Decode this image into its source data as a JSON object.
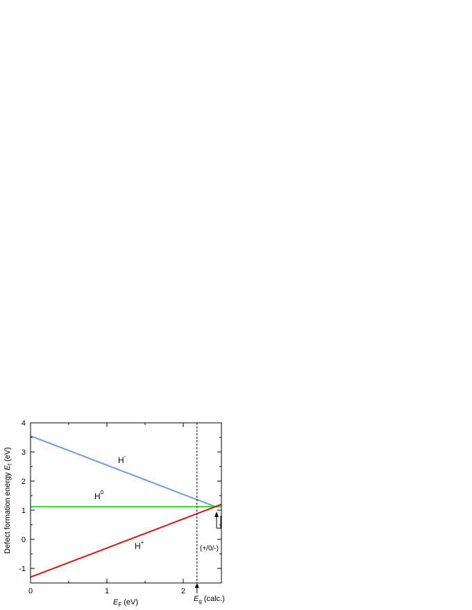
{
  "chart_data": {
    "type": "line",
    "x_label": {
      "symbol": "E",
      "subscript": "F",
      "unit": "(eV)"
    },
    "y_label": {
      "prefix": "Defect formation energy",
      "symbol": "E",
      "subscript": "f",
      "unit": "(eV)"
    },
    "xlim": [
      0,
      2.5
    ],
    "ylim": [
      -1.5,
      4
    ],
    "xticks": [
      0,
      1,
      2
    ],
    "yticks": [
      -1,
      0,
      1,
      2,
      3,
      4
    ],
    "xminorticks": [
      0.5,
      1.5
    ],
    "yminorticks": [
      -0.5,
      0.5,
      1.5,
      2.5,
      3.5
    ],
    "series": [
      {
        "name": "H",
        "charge": "-",
        "color": "#6e97f0",
        "x": [
          0,
          2.42
        ],
        "values": [
          3.55,
          1.12
        ]
      },
      {
        "name": "H",
        "charge": "0",
        "color": "#33dd33",
        "x": [
          0,
          2.5
        ],
        "values": [
          1.12,
          1.12
        ]
      },
      {
        "name": "H",
        "charge": "+",
        "color": "#e01010",
        "x": [
          0,
          2.5
        ],
        "values": [
          -1.3,
          1.2
        ]
      }
    ],
    "vline": {
      "x": 2.18,
      "label": {
        "symbol": "E",
        "subscript": "g",
        "unit": "(calc.)"
      }
    },
    "annotation": "(+/0/-)"
  }
}
